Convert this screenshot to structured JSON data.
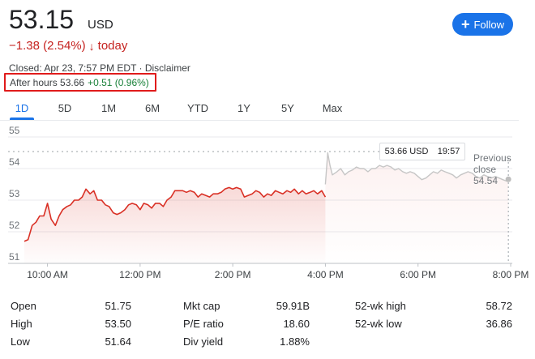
{
  "quote": {
    "price": "53.15",
    "currency": "USD",
    "change": "−1.38 (2.54%)",
    "change_arrow": "↓",
    "change_period": "today",
    "closed_text": "Closed: Apr 23, 7:57 PM EDT · Disclaimer",
    "after_hours_label": "After hours 53.66",
    "after_hours_change": "+0.51 (0.96%)",
    "follow_label": "Follow",
    "follow_icon": "plus-icon"
  },
  "tabs": [
    {
      "label": "1D",
      "active": true
    },
    {
      "label": "5D"
    },
    {
      "label": "1M"
    },
    {
      "label": "6M"
    },
    {
      "label": "YTD"
    },
    {
      "label": "1Y"
    },
    {
      "label": "5Y"
    },
    {
      "label": "Max"
    }
  ],
  "tooltip": {
    "price": "53.66 USD",
    "time": "19:57"
  },
  "previous_close": {
    "line1": "Previous",
    "line2": "close",
    "value": "54.54"
  },
  "colors": {
    "down": "#d93025",
    "after_hours_line": "#c6c6c6",
    "accent": "#1a73e8",
    "positive": "#188038"
  },
  "chart_data": {
    "type": "line",
    "ylim": [
      51,
      55
    ],
    "y_ticks": [
      "55",
      "54",
      "53",
      "52",
      "51"
    ],
    "x_ticks": [
      "10:00 AM",
      "12:00 PM",
      "2:00 PM",
      "4:00 PM",
      "6:00 PM",
      "8:00 PM"
    ],
    "x_range_hours": [
      9.5,
      20.0
    ],
    "x_tick_hours": [
      10,
      12,
      14,
      16,
      18,
      20
    ],
    "previous_close": 54.54,
    "series": [
      {
        "segment": "regular",
        "points": [
          [
            9.5,
            51.7
          ],
          [
            9.58,
            51.75
          ],
          [
            9.67,
            52.2
          ],
          [
            9.75,
            52.3
          ],
          [
            9.83,
            52.5
          ],
          [
            9.92,
            52.5
          ],
          [
            10.0,
            52.9
          ],
          [
            10.08,
            52.4
          ],
          [
            10.17,
            52.2
          ],
          [
            10.25,
            52.5
          ],
          [
            10.33,
            52.7
          ],
          [
            10.42,
            52.8
          ],
          [
            10.5,
            52.85
          ],
          [
            10.58,
            53.0
          ],
          [
            10.67,
            53.0
          ],
          [
            10.75,
            53.1
          ],
          [
            10.83,
            53.35
          ],
          [
            10.92,
            53.2
          ],
          [
            11.0,
            53.3
          ],
          [
            11.08,
            53.0
          ],
          [
            11.17,
            53.0
          ],
          [
            11.25,
            52.85
          ],
          [
            11.33,
            52.8
          ],
          [
            11.42,
            52.6
          ],
          [
            11.5,
            52.55
          ],
          [
            11.58,
            52.6
          ],
          [
            11.67,
            52.7
          ],
          [
            11.75,
            52.85
          ],
          [
            11.83,
            52.9
          ],
          [
            11.92,
            52.85
          ],
          [
            12.0,
            52.7
          ],
          [
            12.08,
            52.9
          ],
          [
            12.17,
            52.85
          ],
          [
            12.25,
            52.75
          ],
          [
            12.33,
            52.9
          ],
          [
            12.42,
            52.9
          ],
          [
            12.5,
            52.8
          ],
          [
            12.58,
            53.0
          ],
          [
            12.67,
            53.1
          ],
          [
            12.75,
            53.3
          ],
          [
            12.83,
            53.3
          ],
          [
            12.92,
            53.3
          ],
          [
            13.0,
            53.25
          ],
          [
            13.08,
            53.3
          ],
          [
            13.17,
            53.25
          ],
          [
            13.25,
            53.1
          ],
          [
            13.33,
            53.2
          ],
          [
            13.42,
            53.15
          ],
          [
            13.5,
            53.1
          ],
          [
            13.58,
            53.2
          ],
          [
            13.67,
            53.2
          ],
          [
            13.75,
            53.25
          ],
          [
            13.83,
            53.35
          ],
          [
            13.92,
            53.4
          ],
          [
            14.0,
            53.35
          ],
          [
            14.08,
            53.4
          ],
          [
            14.17,
            53.35
          ],
          [
            14.25,
            53.1
          ],
          [
            14.33,
            53.15
          ],
          [
            14.42,
            53.2
          ],
          [
            14.5,
            53.3
          ],
          [
            14.58,
            53.25
          ],
          [
            14.67,
            53.1
          ],
          [
            14.75,
            53.2
          ],
          [
            14.83,
            53.15
          ],
          [
            14.92,
            53.3
          ],
          [
            15.0,
            53.25
          ],
          [
            15.08,
            53.2
          ],
          [
            15.17,
            53.3
          ],
          [
            15.25,
            53.25
          ],
          [
            15.33,
            53.35
          ],
          [
            15.42,
            53.2
          ],
          [
            15.5,
            53.3
          ],
          [
            15.58,
            53.2
          ],
          [
            15.67,
            53.25
          ],
          [
            15.75,
            53.3
          ],
          [
            15.83,
            53.2
          ],
          [
            15.92,
            53.3
          ],
          [
            16.0,
            53.1
          ]
        ]
      },
      {
        "segment": "after-hours",
        "points": [
          [
            16.0,
            53.5
          ],
          [
            16.05,
            54.5
          ],
          [
            16.1,
            54.1
          ],
          [
            16.15,
            53.8
          ],
          [
            16.25,
            53.9
          ],
          [
            16.33,
            54.0
          ],
          [
            16.42,
            53.8
          ],
          [
            16.5,
            53.9
          ],
          [
            16.58,
            53.95
          ],
          [
            16.67,
            54.05
          ],
          [
            16.75,
            54.0
          ],
          [
            16.83,
            54.0
          ],
          [
            16.92,
            53.9
          ],
          [
            17.0,
            54.0
          ],
          [
            17.08,
            54.0
          ],
          [
            17.17,
            54.1
          ],
          [
            17.25,
            54.05
          ],
          [
            17.33,
            54.1
          ],
          [
            17.42,
            54.05
          ],
          [
            17.5,
            53.95
          ],
          [
            17.58,
            54.0
          ],
          [
            17.67,
            53.9
          ],
          [
            17.75,
            53.85
          ],
          [
            17.83,
            53.9
          ],
          [
            17.92,
            53.85
          ],
          [
            18.0,
            53.75
          ],
          [
            18.08,
            53.65
          ],
          [
            18.17,
            53.7
          ],
          [
            18.25,
            53.8
          ],
          [
            18.33,
            53.9
          ],
          [
            18.42,
            53.85
          ],
          [
            18.5,
            53.95
          ],
          [
            18.58,
            53.9
          ],
          [
            18.67,
            53.85
          ],
          [
            18.75,
            53.8
          ],
          [
            18.83,
            53.7
          ],
          [
            18.92,
            53.8
          ],
          [
            19.0,
            53.85
          ],
          [
            19.08,
            53.9
          ],
          [
            19.17,
            53.85
          ],
          [
            19.25,
            53.75
          ],
          [
            19.33,
            53.7
          ],
          [
            19.42,
            53.8
          ],
          [
            19.5,
            53.75
          ],
          [
            19.58,
            53.7
          ],
          [
            19.67,
            53.75
          ],
          [
            19.75,
            53.7
          ],
          [
            19.83,
            53.65
          ],
          [
            19.92,
            53.6
          ],
          [
            19.95,
            53.66
          ]
        ]
      }
    ]
  },
  "stats": [
    {
      "label": "Open",
      "value": "51.75"
    },
    {
      "label": "High",
      "value": "53.50"
    },
    {
      "label": "Low",
      "value": "51.64"
    },
    {
      "label": "Mkt cap",
      "value": "59.91B"
    },
    {
      "label": "P/E ratio",
      "value": "18.60"
    },
    {
      "label": "Div yield",
      "value": "1.88%"
    },
    {
      "label": "52-wk high",
      "value": "58.72"
    },
    {
      "label": "52-wk low",
      "value": "36.86"
    }
  ]
}
